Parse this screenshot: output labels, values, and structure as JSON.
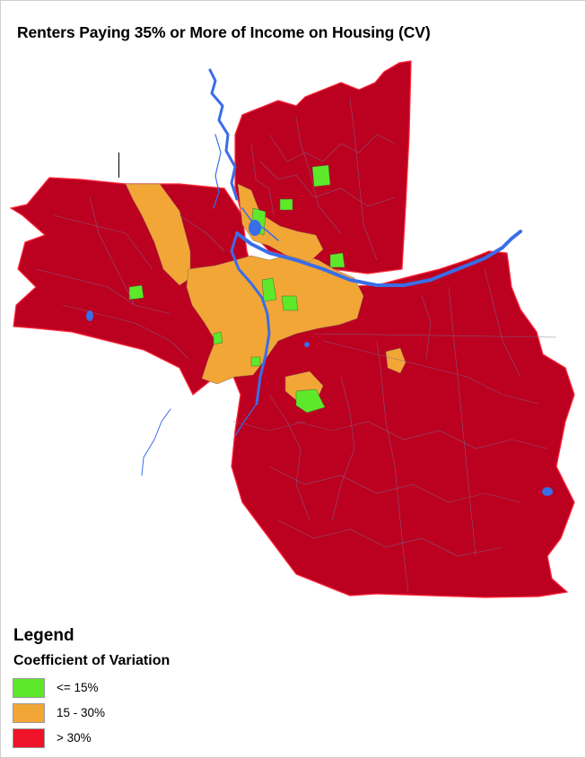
{
  "title": "Renters Paying 35% or More of Income on Housing (CV)",
  "legend": {
    "title": "Legend",
    "subtitle": "Coefficient of Variation",
    "items": [
      {
        "label": "<= 15%",
        "color": "#5ee82a"
      },
      {
        "label": "15 - 30%",
        "color": "#f2a636"
      },
      {
        "label": "> 30%",
        "color": "#ee1328"
      }
    ]
  },
  "colors": {
    "region_fill": "#bc0020",
    "region_border": "#ff2a3c",
    "tract_lines": "#7a6a8a",
    "water": "#3a6de8"
  }
}
